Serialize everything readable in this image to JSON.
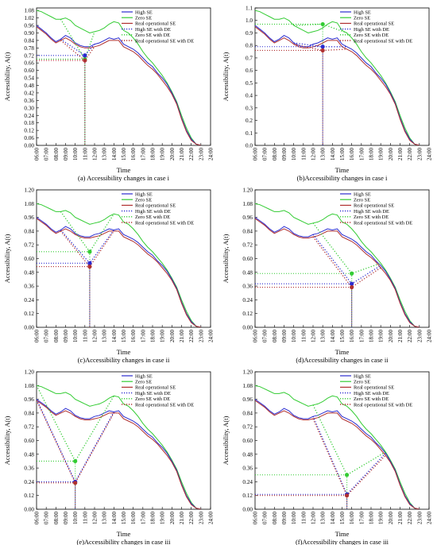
{
  "x_ticks": [
    "06:00",
    "07:00",
    "08:00",
    "09:00",
    "10:00",
    "11:00",
    "12:00",
    "13:00",
    "14:00",
    "15:00",
    "16:00",
    "17:00",
    "18:00",
    "19:00",
    "20:00",
    "21:00",
    "22:00",
    "23:00",
    "24:00"
  ],
  "y_ticks": [
    "0.00",
    "0.12",
    "0.24",
    "0.36",
    "0.48",
    "0.60",
    "0.72",
    "0.84",
    "0.96",
    "1.08",
    "1.20"
  ],
  "y_ticks_a": [
    "0.00",
    "0.06",
    "0.12",
    "0.18",
    "0.24",
    "0.30",
    "0.36",
    "0.42",
    "0.48",
    "0.54",
    "0.60",
    "0.66",
    "0.72",
    "0.78",
    "0.84",
    "0.90",
    "0.96",
    "1.02",
    "1.08"
  ],
  "y_ticks_b": [
    "0.0",
    "0.1",
    "0.2",
    "0.3",
    "0.4",
    "0.5",
    "0.6",
    "0.7",
    "0.8",
    "0.9",
    "1.0",
    "1.1"
  ],
  "colors": {
    "high": "#2b2bcf",
    "zero": "#33cc33",
    "real": "#b03030"
  },
  "chart_data": [
    {
      "type": "line",
      "caption": "(a) Accessibility changes in case i",
      "xlabel": "Time",
      "ylabel": "Accessibility, A(t)",
      "xlim": [
        6,
        24
      ],
      "ylim": [
        0,
        1.1
      ],
      "y_tick_set": "y_ticks_a",
      "legend_position": "top-right",
      "de": {
        "time": 11.0,
        "high": 0.72,
        "zero": 0.69,
        "real": 0.68,
        "start": 8.5,
        "end": 12.0
      },
      "legend": [
        "High SE",
        "Zero SE",
        "Real operational SE",
        "High SE with DE",
        "Zero SE with DE",
        "Real operational SE with DE"
      ]
    },
    {
      "type": "line",
      "caption": "(b)Accessibility changes in case i",
      "xlabel": "Time",
      "ylabel": "Accessibility, A(t)",
      "xlim": [
        6,
        24
      ],
      "ylim": [
        0,
        1.1
      ],
      "y_tick_set": "y_ticks_b",
      "legend_position": "top-right",
      "de": {
        "time": 13.0,
        "high": 0.79,
        "zero": 0.97,
        "real": 0.76,
        "start": 10.0,
        "end": 15.5
      },
      "legend": [
        "High SE",
        "Zero SE",
        "Real operational SE",
        "High SE with DE",
        "Zero SE with DE",
        "Real operational SE with DE"
      ]
    },
    {
      "type": "line",
      "caption": "(c)Accessibility changes in case ii",
      "xlabel": "Time",
      "ylabel": "Accessibility, A(t)",
      "xlim": [
        6,
        24
      ],
      "ylim": [
        0,
        1.2
      ],
      "y_tick_set": "y_ticks",
      "legend_position": "top-right",
      "de": {
        "time": 11.5,
        "high": 0.56,
        "zero": 0.66,
        "real": 0.53,
        "start": 8.5,
        "end": 14.0
      },
      "legend": [
        "High SE",
        "Zero SE",
        "Real operational SE",
        "High SE with DE",
        "Zero SE with DE",
        "Real operational SE with DE"
      ]
    },
    {
      "type": "line",
      "caption": "(d)Accessibility changes in case ii",
      "xlabel": "Time",
      "ylabel": "Accessibility, A(t)",
      "xlim": [
        6,
        24
      ],
      "ylim": [
        0,
        1.2
      ],
      "y_tick_set": "y_ticks",
      "legend_position": "top-right",
      "de": {
        "time": 16.0,
        "high": 0.38,
        "zero": 0.47,
        "real": 0.35,
        "start": 12.0,
        "end": 19.0
      },
      "legend": [
        "High SE",
        "Zero SE",
        "Real operational SE",
        "High SE with DE",
        "Zero SE with DE",
        "Real operational SE with DE"
      ]
    },
    {
      "type": "line",
      "caption": "(e)Accessibility changes in case iii",
      "xlabel": "Time",
      "ylabel": "Accessibility, A(t)",
      "xlim": [
        6,
        24
      ],
      "ylim": [
        0,
        1.2
      ],
      "y_tick_set": "y_ticks",
      "legend_position": "top-right",
      "de": {
        "time": 10.0,
        "high": 0.24,
        "zero": 0.42,
        "real": 0.23,
        "start": 6.0,
        "end": 14.0
      },
      "legend": [
        "High SE",
        "Zero SE",
        "Real operational SE",
        "High SE with DE",
        "Zero SE with DE",
        "Real operational SE with DE"
      ]
    },
    {
      "type": "line",
      "caption": "(f)Accessibility changes in case iii",
      "xlabel": "Time",
      "ylabel": "Accessibility, A(t)",
      "xlim": [
        6,
        24
      ],
      "ylim": [
        0,
        1.2
      ],
      "y_tick_set": "y_ticks",
      "legend_position": "top-right",
      "de": {
        "time": 15.5,
        "high": 0.13,
        "zero": 0.3,
        "real": 0.12,
        "start": 12.0,
        "end": 19.5
      },
      "legend": [
        "High SE",
        "Zero SE",
        "Real operational SE",
        "High SE with DE",
        "Zero SE with DE",
        "Real operational SE with DE"
      ]
    }
  ],
  "base_series": {
    "x": [
      6.0,
      6.5,
      7.0,
      7.5,
      8.0,
      8.5,
      9.0,
      9.5,
      10.0,
      10.5,
      11.0,
      11.5,
      12.0,
      12.5,
      13.0,
      13.5,
      14.0,
      14.5,
      15.0,
      15.5,
      16.0,
      16.5,
      17.0,
      17.5,
      18.0,
      18.5,
      19.0,
      19.5,
      20.0,
      20.5,
      21.0,
      21.5,
      22.0,
      22.5,
      23.0
    ],
    "high": [
      0.96,
      0.93,
      0.9,
      0.86,
      0.83,
      0.85,
      0.88,
      0.86,
      0.82,
      0.8,
      0.79,
      0.79,
      0.81,
      0.82,
      0.84,
      0.86,
      0.85,
      0.86,
      0.81,
      0.79,
      0.77,
      0.74,
      0.7,
      0.66,
      0.63,
      0.58,
      0.54,
      0.49,
      0.42,
      0.34,
      0.22,
      0.12,
      0.05,
      0.01,
      0.0
    ],
    "zero": [
      1.08,
      1.07,
      1.05,
      1.03,
      1.01,
      1.01,
      1.02,
      1.0,
      0.96,
      0.94,
      0.92,
      0.9,
      0.91,
      0.92,
      0.94,
      0.97,
      0.99,
      0.98,
      0.92,
      0.9,
      0.86,
      0.81,
      0.75,
      0.7,
      0.66,
      0.61,
      0.56,
      0.5,
      0.43,
      0.35,
      0.24,
      0.14,
      0.06,
      0.01,
      0.0
    ],
    "real": [
      0.95,
      0.92,
      0.89,
      0.85,
      0.82,
      0.84,
      0.86,
      0.84,
      0.81,
      0.79,
      0.78,
      0.78,
      0.79,
      0.8,
      0.82,
      0.84,
      0.84,
      0.84,
      0.79,
      0.77,
      0.75,
      0.72,
      0.68,
      0.64,
      0.61,
      0.57,
      0.52,
      0.47,
      0.41,
      0.33,
      0.21,
      0.11,
      0.04,
      0.01,
      0.0
    ]
  }
}
